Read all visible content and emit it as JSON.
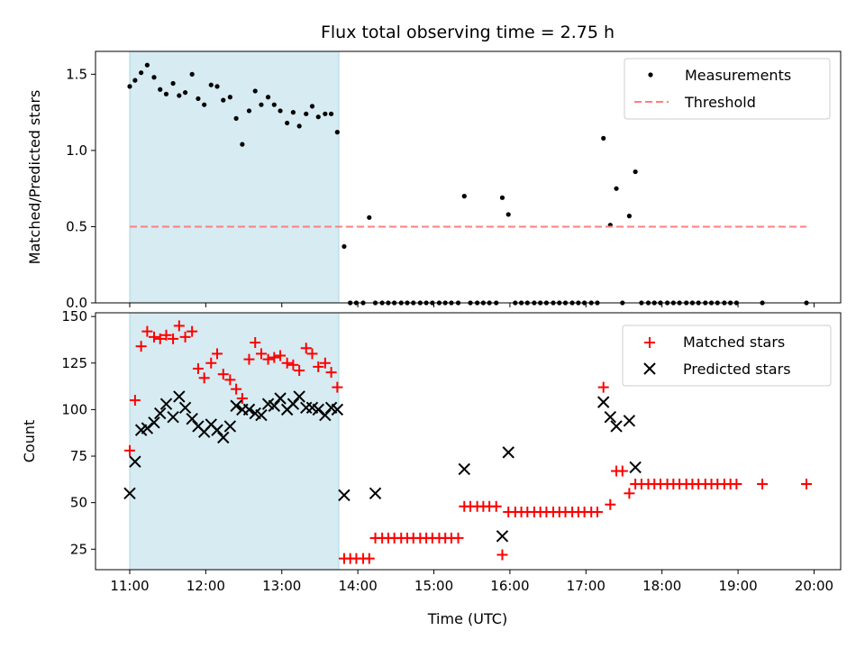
{
  "title": "Flux total observing time = 2.75 h",
  "xlabel": "Time (UTC)",
  "x_ticks": [
    "11:00",
    "12:00",
    "13:00",
    "14:00",
    "15:00",
    "16:00",
    "17:00",
    "18:00",
    "19:00",
    "20:00"
  ],
  "chart_data": [
    {
      "type": "scatter",
      "ylabel": "Matched/Predicted stars",
      "ylim": [
        0,
        1.65
      ],
      "xlim_hours": [
        10.55,
        20.35
      ],
      "y_ticks": [
        "0.0",
        "0.5",
        "1.0",
        "1.5"
      ],
      "shaded_interval_hours": [
        11.0,
        13.75
      ],
      "shaded_color": "#add8e6",
      "legend_position": "upper right",
      "series": [
        {
          "name": "Measurements",
          "marker": "dot",
          "color": "#000000",
          "x": [
            11.0,
            11.07,
            11.15,
            11.23,
            11.32,
            11.4,
            11.48,
            11.57,
            11.65,
            11.73,
            11.82,
            11.9,
            11.98,
            12.07,
            12.15,
            12.23,
            12.32,
            12.4,
            12.48,
            12.57,
            12.65,
            12.73,
            12.82,
            12.9,
            12.98,
            13.07,
            13.15,
            13.23,
            13.32,
            13.4,
            13.48,
            13.57,
            13.65,
            13.73,
            13.82,
            13.9,
            13.98,
            14.07,
            14.15,
            14.23,
            14.32,
            14.4,
            14.48,
            14.57,
            14.65,
            14.73,
            14.82,
            14.9,
            14.98,
            15.07,
            15.15,
            15.23,
            15.32,
            15.4,
            15.48,
            15.57,
            15.65,
            15.73,
            15.82,
            15.9,
            15.98,
            16.07,
            16.15,
            16.23,
            16.32,
            16.4,
            16.48,
            16.57,
            16.65,
            16.73,
            16.82,
            16.9,
            16.98,
            17.07,
            17.15,
            17.23,
            17.32,
            17.4,
            17.48,
            17.57,
            17.65,
            17.73,
            17.82,
            17.9,
            17.98,
            18.07,
            18.15,
            18.23,
            18.32,
            18.4,
            18.48,
            18.57,
            18.65,
            18.73,
            18.82,
            18.9,
            18.98,
            19.32,
            19.9
          ],
          "y": [
            1.42,
            1.46,
            1.51,
            1.56,
            1.48,
            1.4,
            1.37,
            1.44,
            1.36,
            1.38,
            1.5,
            1.34,
            1.3,
            1.43,
            1.42,
            1.33,
            1.35,
            1.21,
            1.04,
            1.26,
            1.39,
            1.3,
            1.35,
            1.3,
            1.26,
            1.18,
            1.25,
            1.16,
            1.24,
            1.29,
            1.22,
            1.24,
            1.24,
            1.12,
            0.37,
            0.0,
            0.0,
            0.0,
            0.56,
            0.0,
            0.0,
            0.0,
            0.0,
            0.0,
            0.0,
            0.0,
            0.0,
            0.0,
            0.0,
            0.0,
            0.0,
            0.0,
            0.0,
            0.7,
            0.0,
            0.0,
            0.0,
            0.0,
            0.0,
            0.69,
            0.58,
            0.0,
            0.0,
            0.0,
            0.0,
            0.0,
            0.0,
            0.0,
            0.0,
            0.0,
            0.0,
            0.0,
            0.0,
            0.0,
            0.0,
            1.08,
            0.51,
            0.75,
            0.0,
            0.57,
            0.86,
            0.0,
            0.0,
            0.0,
            0.0,
            0.0,
            0.0,
            0.0,
            0.0,
            0.0,
            0.0,
            0.0,
            0.0,
            0.0,
            0.0,
            0.0,
            0.0,
            0.0,
            0.0
          ]
        },
        {
          "name": "Threshold",
          "marker": "dashed-line",
          "color": "#ff7f7f",
          "x": [
            11.0,
            19.9
          ],
          "y": [
            0.5,
            0.5
          ]
        }
      ]
    },
    {
      "type": "scatter",
      "ylabel": "Count",
      "ylim": [
        14,
        152
      ],
      "xlim_hours": [
        10.55,
        20.35
      ],
      "y_ticks": [
        "25",
        "50",
        "75",
        "100",
        "125",
        "150"
      ],
      "shaded_interval_hours": [
        11.0,
        13.75
      ],
      "shaded_color": "#add8e6",
      "legend_position": "upper right",
      "series": [
        {
          "name": "Matched stars",
          "marker": "plus",
          "color": "#ff0000",
          "x": [
            11.0,
            11.07,
            11.15,
            11.23,
            11.32,
            11.4,
            11.48,
            11.57,
            11.65,
            11.73,
            11.82,
            11.9,
            11.98,
            12.07,
            12.15,
            12.23,
            12.32,
            12.4,
            12.48,
            12.57,
            12.65,
            12.73,
            12.82,
            12.9,
            12.98,
            13.07,
            13.15,
            13.23,
            13.32,
            13.4,
            13.48,
            13.57,
            13.65,
            13.73,
            13.82,
            13.9,
            13.98,
            14.07,
            14.15,
            14.23,
            14.32,
            14.4,
            14.48,
            14.57,
            14.65,
            14.73,
            14.82,
            14.9,
            14.98,
            15.07,
            15.15,
            15.23,
            15.32,
            15.4,
            15.48,
            15.57,
            15.65,
            15.73,
            15.82,
            15.9,
            15.98,
            16.07,
            16.15,
            16.23,
            16.32,
            16.4,
            16.48,
            16.57,
            16.65,
            16.73,
            16.82,
            16.9,
            16.98,
            17.07,
            17.15,
            17.23,
            17.32,
            17.4,
            17.48,
            17.57,
            17.65,
            17.73,
            17.82,
            17.9,
            17.98,
            18.07,
            18.15,
            18.23,
            18.32,
            18.4,
            18.48,
            18.57,
            18.65,
            18.73,
            18.82,
            18.9,
            18.98,
            19.32,
            19.9
          ],
          "y": [
            78,
            105,
            134,
            142,
            139,
            138,
            140,
            138,
            145,
            139,
            142,
            122,
            117,
            125,
            130,
            119,
            116,
            111,
            106,
            127,
            136,
            130,
            127,
            128,
            129,
            125,
            124,
            121,
            133,
            130,
            123,
            125,
            120,
            112,
            20,
            20,
            20,
            20,
            20,
            31,
            31,
            31,
            31,
            31,
            31,
            31,
            31,
            31,
            31,
            31,
            31,
            31,
            31,
            48,
            48,
            48,
            48,
            48,
            48,
            22,
            45,
            45,
            45,
            45,
            45,
            45,
            45,
            45,
            45,
            45,
            45,
            45,
            45,
            45,
            45,
            112,
            49,
            67,
            67,
            55,
            60,
            60,
            60,
            60,
            60,
            60,
            60,
            60,
            60,
            60,
            60,
            60,
            60,
            60,
            60,
            60,
            60,
            60,
            60
          ]
        },
        {
          "name": "Predicted stars",
          "marker": "x",
          "color": "#000000",
          "x": [
            11.0,
            11.07,
            11.15,
            11.23,
            11.32,
            11.4,
            11.48,
            11.57,
            11.65,
            11.73,
            11.82,
            11.9,
            11.98,
            12.07,
            12.15,
            12.23,
            12.32,
            12.4,
            12.48,
            12.57,
            12.65,
            12.73,
            12.82,
            12.9,
            12.98,
            13.07,
            13.15,
            13.23,
            13.32,
            13.4,
            13.48,
            13.57,
            13.65,
            13.73,
            13.82,
            14.23,
            15.4,
            15.9,
            15.98,
            17.23,
            17.32,
            17.4,
            17.57,
            17.65
          ],
          "y": [
            55,
            72,
            89,
            90,
            93,
            98,
            103,
            96,
            107,
            101,
            95,
            91,
            88,
            92,
            89,
            85,
            91,
            102,
            100,
            100,
            98,
            97,
            103,
            102,
            106,
            100,
            103,
            107,
            101,
            101,
            100,
            97,
            101,
            100,
            54,
            55,
            68,
            32,
            77,
            104,
            96,
            91,
            94,
            69
          ]
        }
      ]
    }
  ]
}
